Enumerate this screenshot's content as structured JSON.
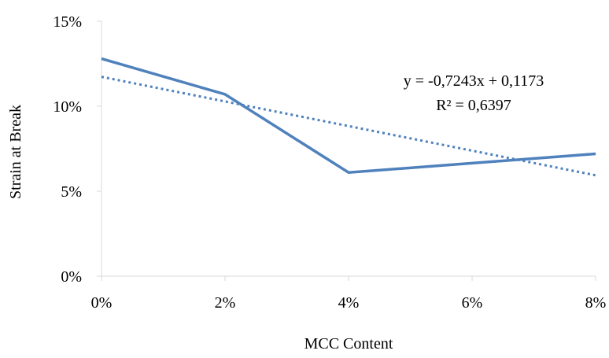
{
  "chart_data": {
    "type": "line",
    "title": "",
    "xlabel": "MCC Content",
    "ylabel": "Strain at Break",
    "x": [
      0,
      0.02,
      0.04,
      0.06,
      0.08
    ],
    "x_tick_labels": [
      "0%",
      "2%",
      "4%",
      "6%",
      "8%"
    ],
    "y_ticks": [
      0,
      0.05,
      0.1,
      0.15
    ],
    "y_tick_labels": [
      "0%",
      "5%",
      "10%",
      "15%"
    ],
    "xlim": [
      0,
      0.08
    ],
    "ylim": [
      0,
      0.15
    ],
    "grid": false,
    "legend": "none",
    "series": [
      {
        "values": [
          0.128,
          0.107,
          0.061,
          null,
          0.072
        ],
        "color": "#4f81bd",
        "style": "solid"
      }
    ],
    "trendline": {
      "type": "linear",
      "slope": -0.7243,
      "intercept": 0.1173,
      "color": "#4f81bd",
      "style": "dotted",
      "equation": "y = -0,7243x + 0,1173",
      "r_squared": "R² = 0,6397"
    }
  }
}
